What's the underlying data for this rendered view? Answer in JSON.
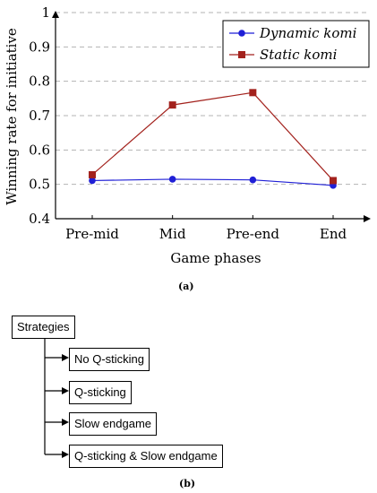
{
  "chart_data": {
    "type": "line",
    "categories": [
      "Pre-mid",
      "Mid",
      "Pre-end",
      "End"
    ],
    "series": [
      {
        "name": "Dynamic komi",
        "values": [
          0.511,
          0.515,
          0.513,
          0.497
        ],
        "color": "#1f1fd6",
        "marker": "circle"
      },
      {
        "name": "Static komi",
        "values": [
          0.528,
          0.731,
          0.767,
          0.511
        ],
        "color": "#a3221d",
        "marker": "square"
      }
    ],
    "title": "",
    "xlabel": "Game phases",
    "ylabel": "Winning rate for initiative",
    "ylim": [
      0.4,
      1.0
    ],
    "yticks": [
      "0.4",
      "0.5",
      "0.6",
      "0.7",
      "0.8",
      "0.9",
      "1"
    ],
    "grid": "horizontal-dashed",
    "legend_position": "top-right"
  },
  "captions": {
    "a": "(a)",
    "b": "(b)"
  },
  "tree": {
    "root": "Strategies",
    "children": [
      "No Q-sticking",
      "Q-sticking",
      "Slow endgame",
      "Q-sticking & Slow endgame"
    ]
  }
}
